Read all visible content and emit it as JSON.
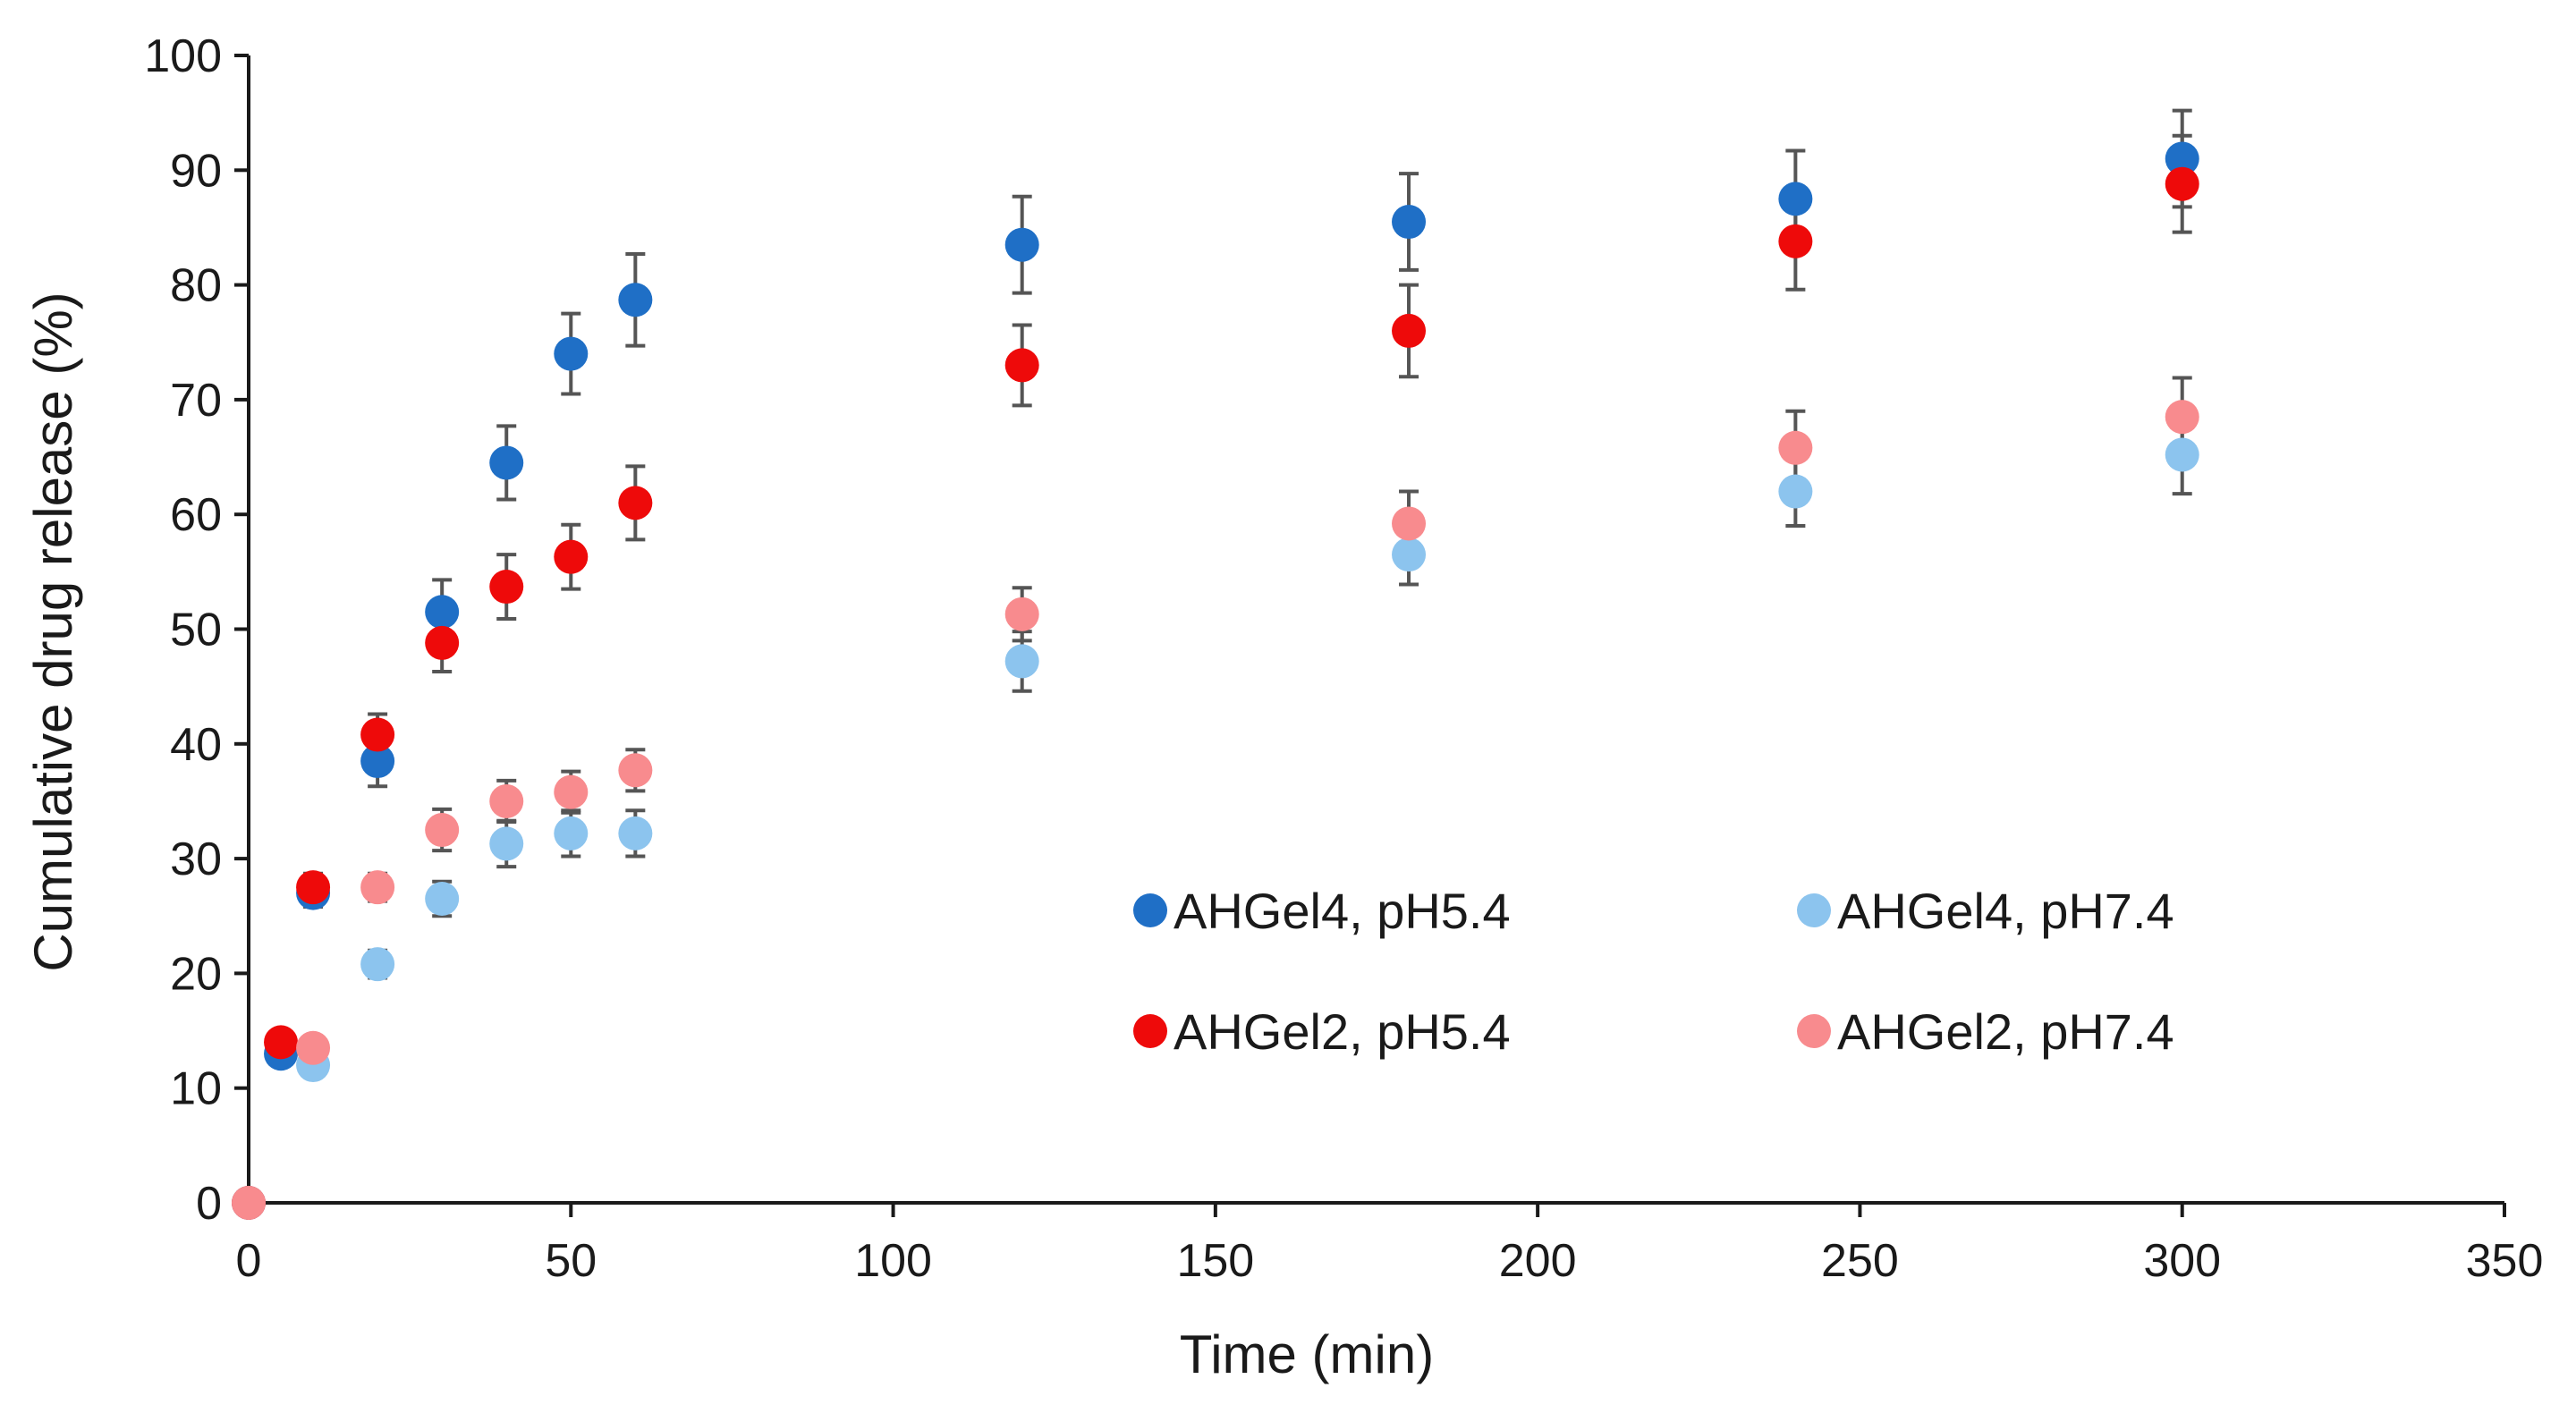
{
  "chart_data": {
    "type": "scatter",
    "xlabel": "Time (min)",
    "ylabel": "Cumulative drug release (%)",
    "xlim": [
      0,
      350
    ],
    "ylim": [
      0,
      100
    ],
    "x_ticks": [
      0,
      50,
      100,
      150,
      200,
      250,
      300,
      350
    ],
    "y_ticks": [
      0,
      10,
      20,
      30,
      40,
      50,
      60,
      70,
      80,
      90,
      100
    ],
    "grid": false,
    "legend_placement": "center-right, two columns",
    "series": [
      {
        "name": "AHGel4, pH5.4",
        "color": "#1f6fc6",
        "x": [
          0,
          5,
          10,
          20,
          30,
          40,
          50,
          60,
          120,
          180,
          240,
          300
        ],
        "y": [
          0,
          13,
          27,
          38.5,
          51.5,
          64.5,
          74,
          78.7,
          83.5,
          85.5,
          87.5,
          91
        ],
        "error": [
          0,
          1,
          1.2,
          2.2,
          2.8,
          3.2,
          3.5,
          4,
          4.2,
          4.2,
          4.2,
          4.2
        ]
      },
      {
        "name": "AHGel4, pH7.4",
        "color": "#8cc4ee",
        "x": [
          0,
          10,
          20,
          30,
          40,
          50,
          60,
          120,
          180,
          240,
          300
        ],
        "y": [
          0,
          12,
          20.8,
          26.5,
          31.3,
          32.2,
          32.2,
          47.2,
          56.5,
          62,
          65.2
        ],
        "error": [
          0,
          1,
          1.2,
          1.5,
          2,
          2,
          2,
          2.6,
          2.6,
          3,
          3.4
        ]
      },
      {
        "name": "AHGel2, pH5.4",
        "color": "#ee0a0a",
        "x": [
          0,
          5,
          10,
          20,
          30,
          40,
          50,
          60,
          120,
          180,
          240,
          300
        ],
        "y": [
          0,
          14,
          27.5,
          40.8,
          48.8,
          53.7,
          56.3,
          61,
          73,
          76,
          83.8,
          88.8
        ],
        "error": [
          0,
          1,
          1.2,
          1.8,
          2.5,
          2.8,
          2.8,
          3.2,
          3.5,
          4,
          4.2,
          4.2
        ]
      },
      {
        "name": "AHGel2, pH7.4",
        "color": "#f88b8e",
        "x": [
          0,
          10,
          20,
          30,
          40,
          50,
          60,
          120,
          180,
          240,
          300
        ],
        "y": [
          0,
          13.5,
          27.5,
          32.5,
          35,
          35.8,
          37.7,
          51.3,
          59.2,
          65.8,
          68.5
        ],
        "error": [
          0,
          1,
          1.2,
          1.8,
          1.8,
          1.8,
          1.8,
          2.3,
          2.8,
          3.2,
          3.4
        ]
      }
    ]
  }
}
